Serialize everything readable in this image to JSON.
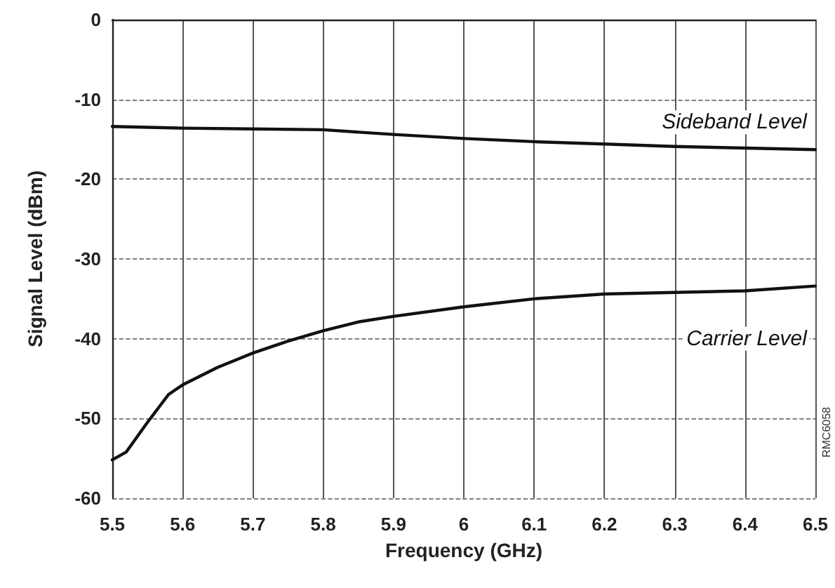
{
  "chart_data": {
    "type": "line",
    "xlabel": "Frequency (GHz)",
    "ylabel": "Signal Level (dBm)",
    "xlim": [
      5.5,
      6.5
    ],
    "xticks": [
      5.5,
      5.6,
      5.7,
      5.8,
      5.9,
      6,
      6.1,
      6.2,
      6.3,
      6.4,
      6.5
    ],
    "ylim": [
      -60,
      0
    ],
    "yticks": [
      -60,
      -50,
      -40,
      -30,
      -20,
      -10,
      0
    ],
    "grid": true,
    "legend": false,
    "marker": "none",
    "line_style": "solid",
    "annotations": [
      "RMC6058"
    ],
    "series": [
      {
        "name": "Sideband Level",
        "color": "#111111",
        "x": [
          5.5,
          5.6,
          5.7,
          5.8,
          5.9,
          6.0,
          6.1,
          6.2,
          6.3,
          6.4,
          6.5
        ],
        "values": [
          -13.4,
          -13.6,
          -13.7,
          -13.8,
          -14.4,
          -14.9,
          -15.3,
          -15.6,
          -15.9,
          -16.1,
          -16.3
        ]
      },
      {
        "name": "Carrier Level",
        "color": "#111111",
        "x": [
          5.5,
          5.52,
          5.55,
          5.58,
          5.6,
          5.65,
          5.7,
          5.75,
          5.8,
          5.85,
          5.9,
          6.0,
          6.1,
          6.2,
          6.3,
          6.4,
          6.5
        ],
        "values": [
          -55.2,
          -54.2,
          -50.5,
          -47,
          -45.8,
          -43.6,
          -41.8,
          -40.3,
          -39,
          -37.9,
          -37.2,
          -36,
          -35,
          -34.4,
          -34.2,
          -34,
          -33.4
        ]
      }
    ]
  }
}
